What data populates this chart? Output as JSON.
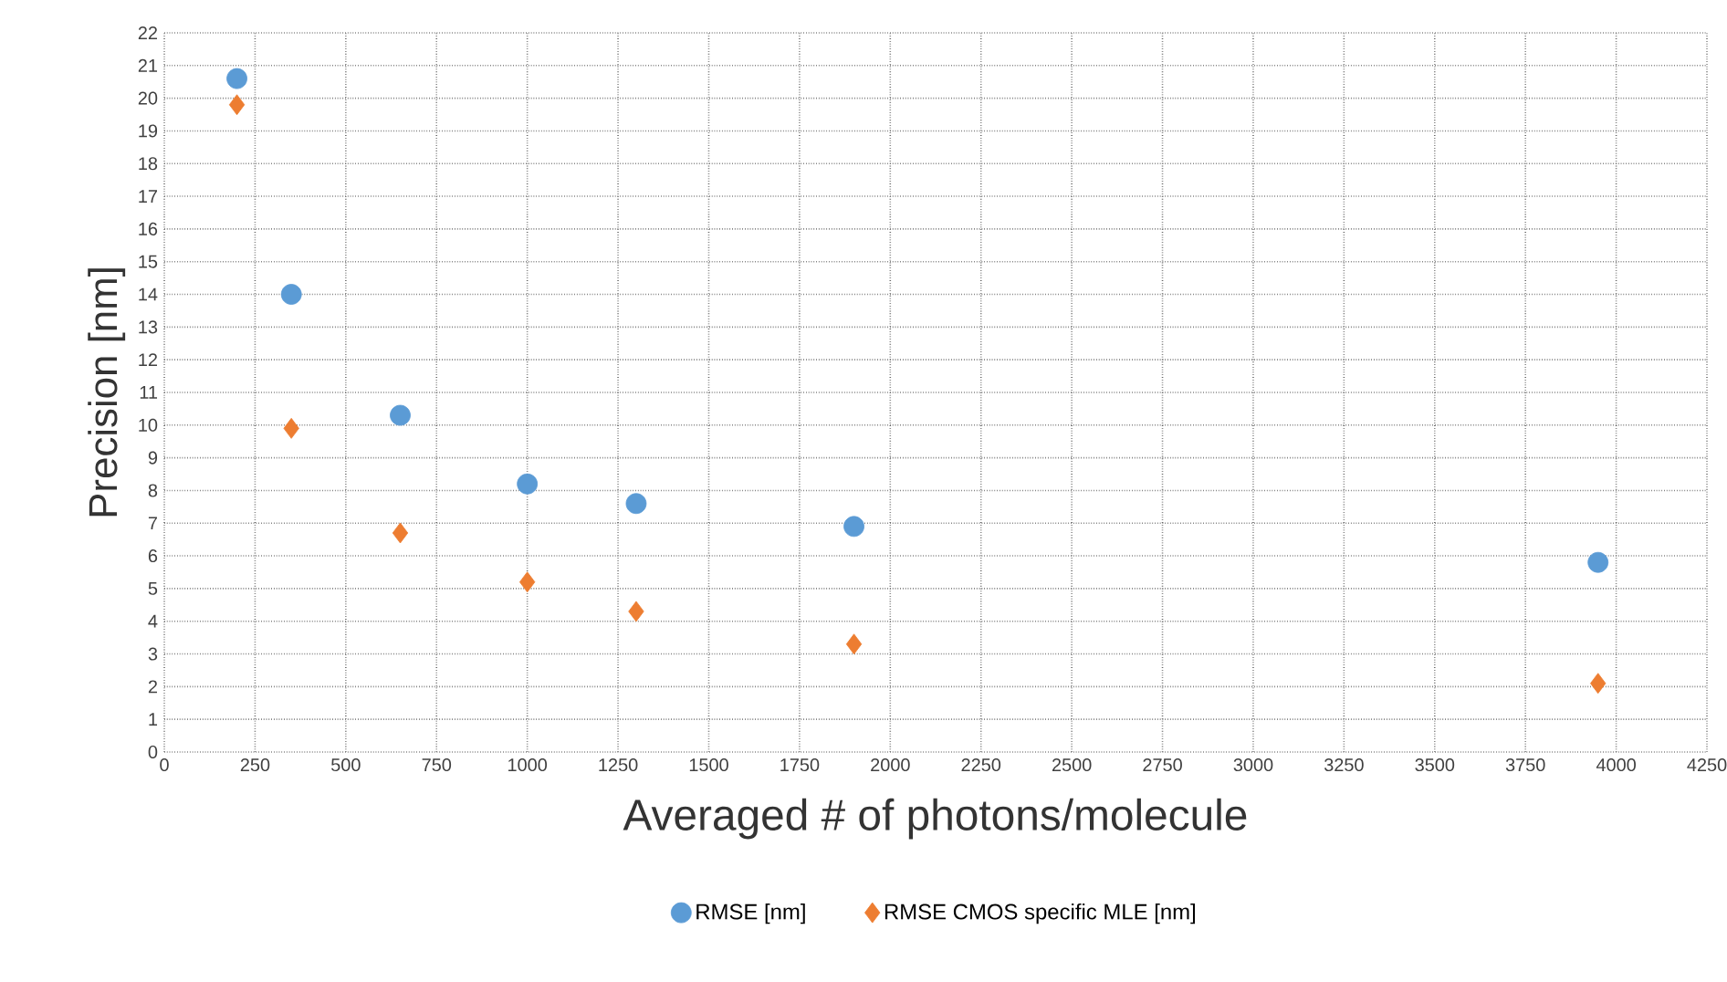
{
  "chart_data": {
    "type": "scatter",
    "xlabel": "Averaged # of photons/molecule",
    "ylabel": "Precision [nm]",
    "xlim": [
      0,
      4250
    ],
    "xticks": [
      0,
      250,
      500,
      750,
      1000,
      1250,
      1500,
      1750,
      2000,
      2250,
      2500,
      2750,
      3000,
      3250,
      3500,
      3750,
      4000,
      4250
    ],
    "ylim": [
      0,
      22
    ],
    "yticks": [
      0,
      1,
      2,
      3,
      4,
      5,
      6,
      7,
      8,
      9,
      10,
      11,
      12,
      13,
      14,
      15,
      16,
      17,
      18,
      19,
      20,
      21,
      22
    ],
    "grid": true,
    "legend": "bottom",
    "series": [
      {
        "name": "RMSE [nm]",
        "color": "#5b9bd5",
        "marker": "circle",
        "x": [
          200,
          350,
          650,
          1000,
          1300,
          1900,
          3950
        ],
        "values": [
          20.6,
          14.0,
          10.3,
          8.2,
          7.6,
          6.9,
          5.8
        ]
      },
      {
        "name": "RMSE CMOS specific MLE [nm]",
        "color": "#ed7d31",
        "marker": "diamond",
        "x": [
          200,
          350,
          650,
          1000,
          1300,
          1900,
          3950
        ],
        "values": [
          19.8,
          9.9,
          6.7,
          5.2,
          4.3,
          3.3,
          2.1
        ]
      }
    ]
  }
}
